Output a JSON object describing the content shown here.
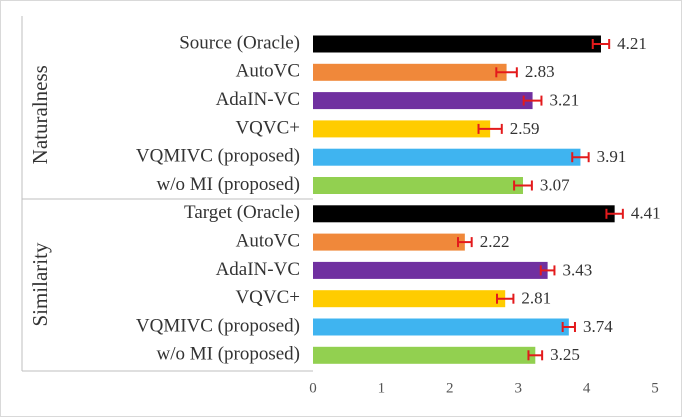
{
  "chart_data": {
    "type": "bar",
    "orientation": "horizontal",
    "colors": [
      "#000000",
      "#f0883a",
      "#7030a0",
      "#ffcc00",
      "#3fb4f0",
      "#92d050"
    ],
    "error_color": "#e31a1c",
    "groups": [
      {
        "name": "Naturalness",
        "categories": [
          "Source (Oracle)",
          "AutoVC",
          "AdaIN-VC",
          "VQVC+",
          "VQMIVC (proposed)",
          "w/o MI (proposed)"
        ],
        "values": [
          4.21,
          2.83,
          3.21,
          2.59,
          3.91,
          3.07
        ],
        "errors": [
          0.12,
          0.15,
          0.13,
          0.17,
          0.12,
          0.13
        ]
      },
      {
        "name": "Similarity",
        "categories": [
          "Target (Oracle)",
          "AutoVC",
          "AdaIN-VC",
          "VQVC+",
          "VQMIVC (proposed)",
          "w/o MI (proposed)"
        ],
        "values": [
          4.41,
          2.22,
          3.43,
          2.81,
          3.74,
          3.25
        ],
        "errors": [
          0.12,
          0.1,
          0.1,
          0.12,
          0.09,
          0.1
        ]
      }
    ],
    "xlim": [
      0,
      5
    ],
    "xticks": [
      0,
      1,
      2,
      3,
      4,
      5
    ]
  }
}
